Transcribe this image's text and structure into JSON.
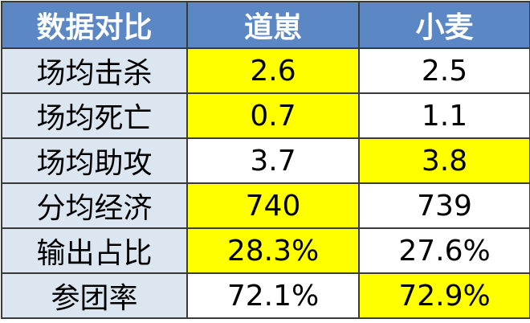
{
  "table": {
    "header": [
      "数据对比",
      "道崽",
      "小麦"
    ],
    "rows": [
      [
        "场均击杀",
        "2.6",
        "2.5"
      ],
      [
        "场均死亡",
        "0.7",
        "1.1"
      ],
      [
        "场均助攻",
        "3.7",
        "3.8"
      ],
      [
        "分均经济",
        "740",
        "739"
      ],
      [
        "输出占比",
        "28.3%",
        "27.6%"
      ],
      [
        "参团率",
        "72.1%",
        "72.9%"
      ]
    ]
  }
}
